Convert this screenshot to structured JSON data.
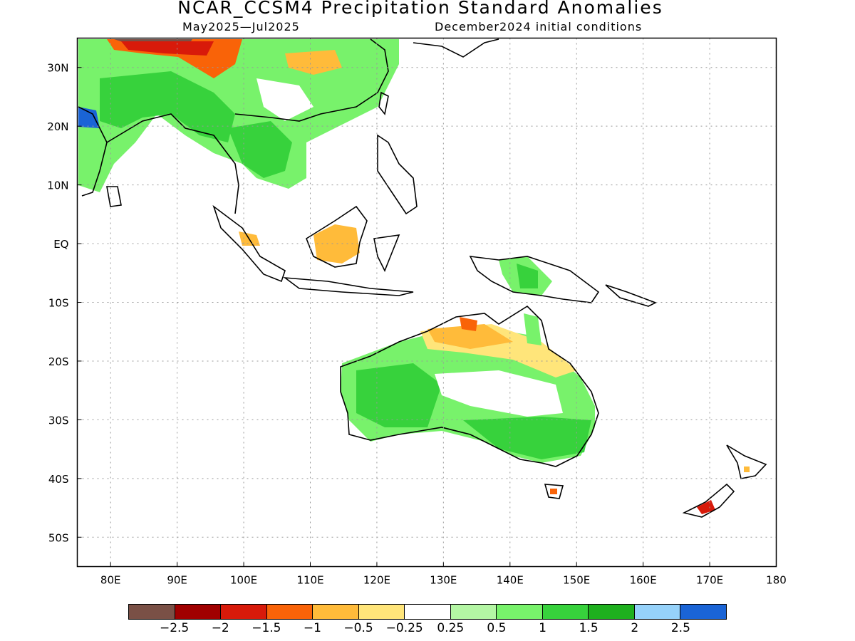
{
  "title": "NCAR_CCSM4 Precipitation Standard Anomalies",
  "subtitle_left": "May2025—Jul2025",
  "subtitle_right": "December2024 initial conditions",
  "map": {
    "lon_range": [
      75,
      180
    ],
    "lat_range": [
      -55,
      35
    ],
    "x_ticks": [
      "80E",
      "90E",
      "100E",
      "110E",
      "120E",
      "130E",
      "140E",
      "150E",
      "160E",
      "170E",
      "180"
    ],
    "y_ticks": [
      "30N",
      "20N",
      "10N",
      "EQ",
      "10S",
      "20S",
      "30S",
      "40S",
      "50S"
    ],
    "grid": "dotted"
  },
  "legend": {
    "colors": [
      "#7a5046",
      "#a00000",
      "#d81a0a",
      "#f96308",
      "#ffbb3a",
      "#ffe57a",
      "#ffffff",
      "#b4f6a4",
      "#78f26b",
      "#37d23c",
      "#1eb01e",
      "#96d2fa",
      "#1a64d6"
    ],
    "labels": [
      "−2.5",
      "−2",
      "−1.5",
      "−1",
      "−0.5",
      "−0.25",
      "0.25",
      "0.5",
      "1",
      "1.5",
      "2",
      "2.5"
    ]
  }
}
